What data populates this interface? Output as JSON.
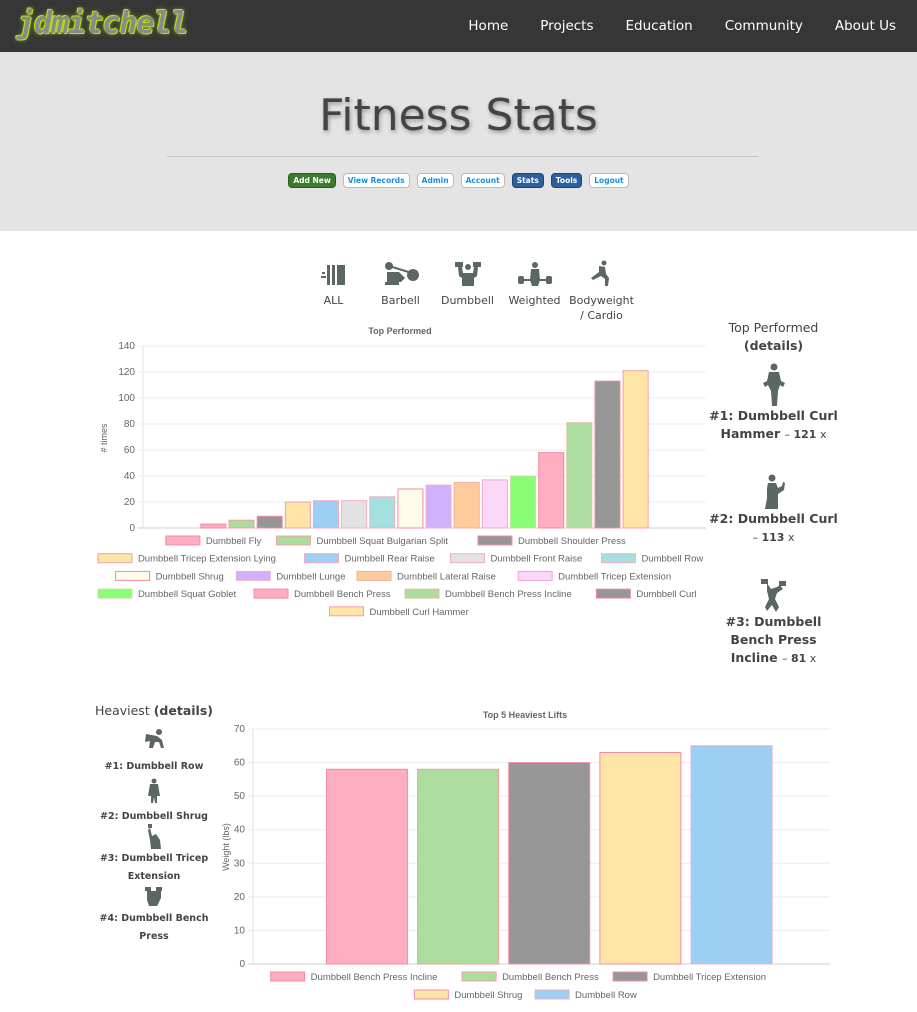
{
  "nav": {
    "logo": "jdmitchell",
    "links": [
      "Home",
      "Projects",
      "Education",
      "Community",
      "About Us"
    ]
  },
  "hero": {
    "title": "Fitness Stats",
    "buttons": [
      {
        "label": "Add New",
        "style": "green"
      },
      {
        "label": "View Records",
        "style": "plain"
      },
      {
        "label": "Admin",
        "style": "plain"
      },
      {
        "label": "Account",
        "style": "plain"
      },
      {
        "label": "Stats",
        "style": "blue"
      },
      {
        "label": "Tools",
        "style": "blue"
      },
      {
        "label": "Logout",
        "style": "plain"
      }
    ]
  },
  "categories": [
    {
      "label": "ALL",
      "icon": "all-bars-icon"
    },
    {
      "label": "Barbell",
      "icon": "barbell-icon"
    },
    {
      "label": "Dumbbell",
      "icon": "dumbbell-icon"
    },
    {
      "label": "Weighted",
      "icon": "weighted-icon"
    },
    {
      "label": "Bodyweight / Cardio",
      "icon": "bodyweight-icon"
    }
  ],
  "top_performed": {
    "heading": "Top Performed",
    "details": "(details)",
    "items": [
      {
        "rank": "#1: Dumbbell Curl Hammer",
        "count": "121",
        "suffix": "x"
      },
      {
        "rank": "#2: Dumbbell Curl",
        "count": "113",
        "suffix": "x"
      },
      {
        "rank": "#3: Dumbbell Bench Press Incline",
        "count": "81",
        "suffix": "x"
      }
    ]
  },
  "heaviest": {
    "heading": "Heaviest",
    "details": "(details)",
    "items": [
      "#1: Dumbbell Row",
      "#2: Dumbbell Shrug",
      "#3: Dumbbell Tricep Extension",
      "#4: Dumbbell Bench Press"
    ]
  },
  "chart_data": [
    {
      "type": "bar",
      "title": "Top Performed",
      "xlabel": "",
      "ylabel": "# times",
      "ylim": [
        0,
        140
      ],
      "yticks": [
        0,
        20,
        40,
        60,
        80,
        100,
        120,
        140
      ],
      "grid": true,
      "legend": "bottom",
      "categories": [
        "Dumbbell Fly",
        "Dumbbell Squat Bulgarian Split",
        "Dumbbell Shoulder Press",
        "Dumbbell Tricep Extension Lying",
        "Dumbbell Rear Raise",
        "Dumbbell Front Raise",
        "Dumbbell Row",
        "Dumbbell Shrug",
        "Dumbbell Lunge",
        "Dumbbell Lateral Raise",
        "Dumbbell Tricep Extension",
        "Dumbbell Squat Goblet",
        "Dumbbell Bench Press",
        "Dumbbell Bench Press Incline",
        "Dumbbell Curl",
        "Dumbbell Curl Hammer"
      ],
      "values": [
        3,
        6,
        9,
        20,
        21,
        21,
        24,
        30,
        33,
        35,
        37,
        40,
        58,
        81,
        113,
        121
      ],
      "colors": [
        "#ffadc0",
        "#acdd9f",
        "#969696",
        "#fee4a7",
        "#9ccff4",
        "#e2e2e4",
        "#a6dfe0",
        "#fdfcea",
        "#cfb1fb",
        "#fecb9d",
        "#fdd7f7",
        "#8bfc76",
        "#ffadc0",
        "#acdd9f",
        "#969696",
        "#fee4a7"
      ],
      "borders": [
        "#f48aa2",
        "#f4a0a0",
        "#f48aa2",
        "#f4a0a0",
        "#f0a8c0",
        "#f0b0c0",
        "#f0b0c0",
        "#f48aa2",
        "#f0b0d0",
        "#f4b0a0",
        "#f0a8d0",
        "#c8e0a0",
        "#f48aa2",
        "#e0c0a0",
        "#f48aa2",
        "#f4a0a0"
      ]
    },
    {
      "type": "bar",
      "title": "Top 5 Heaviest Lifts",
      "xlabel": "",
      "ylabel": "Weight (lbs)",
      "ylim": [
        0,
        70
      ],
      "yticks": [
        0,
        10,
        20,
        30,
        40,
        50,
        60,
        70
      ],
      "grid": true,
      "legend": "bottom",
      "categories": [
        "Dumbbell Bench Press Incline",
        "Dumbbell Bench Press",
        "Dumbbell Tricep Extension",
        "Dumbbell Shrug",
        "Dumbbell Row"
      ],
      "values": [
        58,
        58,
        60,
        63,
        65
      ],
      "colors": [
        "#ffadc0",
        "#acdd9f",
        "#969696",
        "#fee4a7",
        "#9ccff4"
      ],
      "borders": [
        "#f48aa2",
        "#f4a0a0",
        "#f48aa2",
        "#f48aa2",
        "#f0a8c8"
      ]
    }
  ]
}
